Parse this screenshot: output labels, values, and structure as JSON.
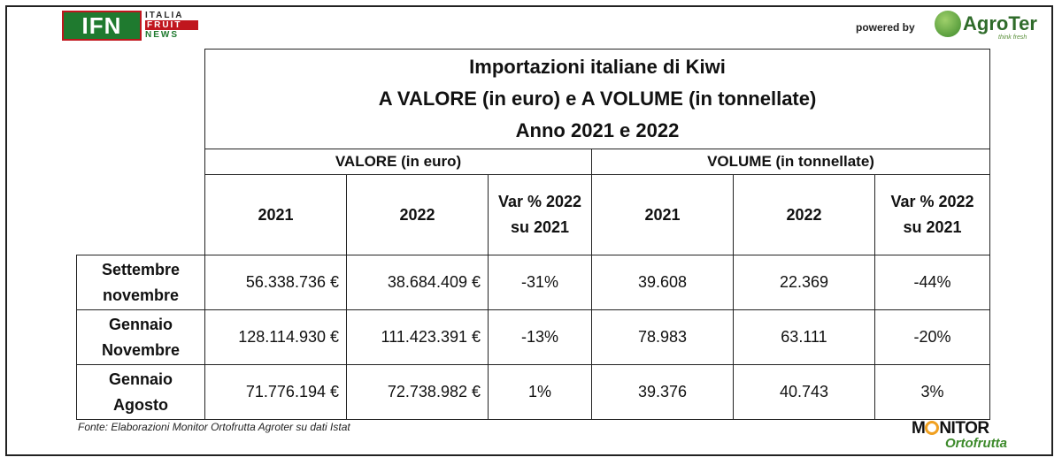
{
  "logos": {
    "ifn": {
      "mark": "IFN",
      "line1": "ITALIA",
      "line2": "FRUIT",
      "line3": "NEWS"
    },
    "powered_by": "powered by",
    "agroter": {
      "name": "AgroTer",
      "tagline": "think fresh"
    },
    "monitor": {
      "line1a": "M",
      "line1b": "NITOR",
      "line2": "Ortofrutta"
    }
  },
  "table": {
    "title_lines": [
      "Importazioni italiane di Kiwi",
      "A VALORE (in euro) e A VOLUME (in tonnellate)",
      "Anno 2021 e 2022"
    ],
    "group_headers": [
      "VALORE (in euro)",
      "VOLUME (in tonnellate)"
    ],
    "columns": [
      {
        "line1": "2021",
        "line2": ""
      },
      {
        "line1": "2022",
        "line2": ""
      },
      {
        "line1": "Var % 2022",
        "line2": "su 2021"
      },
      {
        "line1": "2021",
        "line2": ""
      },
      {
        "line1": "2022",
        "line2": ""
      },
      {
        "line1": "Var % 2022",
        "line2": "su 2021"
      }
    ],
    "rows": [
      {
        "label1": "Settembre",
        "label2": "novembre",
        "cells": [
          "56.338.736 €",
          "38.684.409 €",
          "-31%",
          "39.608",
          "22.369",
          "-44%"
        ]
      },
      {
        "label1": "Gennaio",
        "label2": "Novembre",
        "cells": [
          "128.114.930 €",
          "111.423.391 €",
          "-13%",
          "78.983",
          "63.111",
          "-20%"
        ]
      },
      {
        "label1": "Gennaio",
        "label2": "Agosto",
        "cells": [
          "71.776.194 €",
          "72.738.982 €",
          "1%",
          "39.376",
          "40.743",
          "3%"
        ]
      }
    ]
  },
  "source_note": "Fonte: Elaborazioni Monitor Ortofrutta Agroter su dati Istat"
}
